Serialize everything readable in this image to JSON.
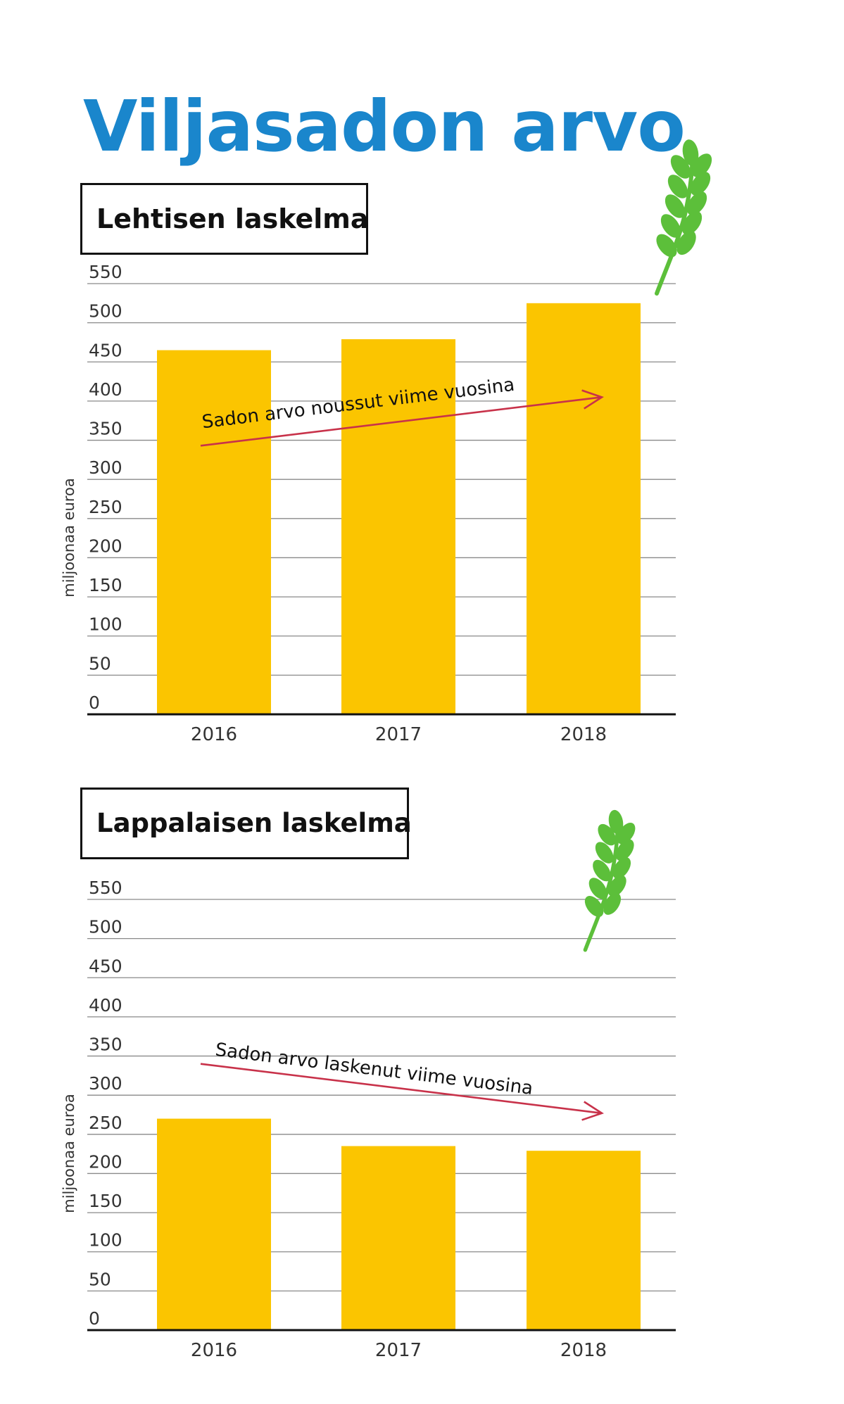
{
  "title": "Viljasadon arvo",
  "colors": {
    "title": "#1a86cc",
    "bar": "#fbc500",
    "arrow": "#c8324a",
    "wheat": "#5cbf3a",
    "grid": "#8a8a8a"
  },
  "chart_data": [
    {
      "type": "bar",
      "title": "Lehtisen laskelma",
      "ylabel": "miljoonaa euroa",
      "xlabel": "",
      "categories": [
        "2016",
        "2017",
        "2018"
      ],
      "values": [
        465,
        479,
        525
      ],
      "ylim": [
        0,
        550
      ],
      "yticks": [
        "0",
        "50",
        "100",
        "150",
        "200",
        "250",
        "300",
        "350",
        "400",
        "450",
        "500",
        "550"
      ],
      "grid": true,
      "annotation": {
        "text": "Sadon arvo noussut viime vuosina",
        "from_value": 343,
        "to_value": 405
      }
    },
    {
      "type": "bar",
      "title": "Lappalaisen laskelma",
      "ylabel": "miljoonaa euroa",
      "xlabel": "",
      "categories": [
        "2016",
        "2017",
        "2018"
      ],
      "values": [
        270,
        235,
        229
      ],
      "ylim": [
        0,
        550
      ],
      "yticks": [
        "0",
        "50",
        "100",
        "150",
        "200",
        "250",
        "300",
        "350",
        "400",
        "450",
        "500",
        "550"
      ],
      "grid": true,
      "annotation": {
        "text": "Sadon arvo laskenut viime vuosina",
        "from_value": 340,
        "to_value": 277
      }
    }
  ]
}
